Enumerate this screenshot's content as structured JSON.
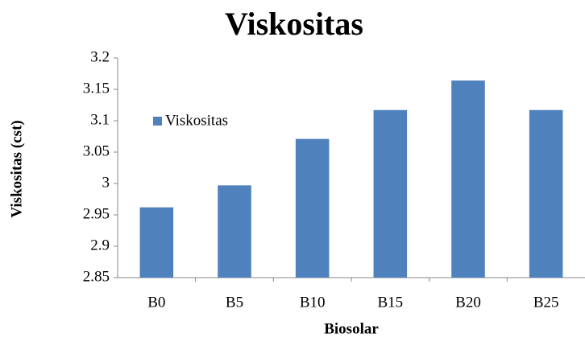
{
  "chart_data": {
    "type": "bar",
    "title": "Viskositas",
    "x_label": "Biosolar",
    "y_label": "Viskositas (cst)",
    "categories": [
      "B0",
      "B5",
      "B10",
      "B15",
      "B20",
      "B25"
    ],
    "series": [
      {
        "name": "Viskositas",
        "color": "#4f81bd",
        "values": [
          2.962,
          2.997,
          3.071,
          3.117,
          3.164,
          3.117
        ]
      }
    ],
    "ylim": [
      2.85,
      3.2
    ],
    "yticks": [
      2.85,
      2.9,
      2.95,
      3,
      3.05,
      3.1,
      3.15,
      3.2
    ],
    "grid": false,
    "legend": "upper left"
  }
}
